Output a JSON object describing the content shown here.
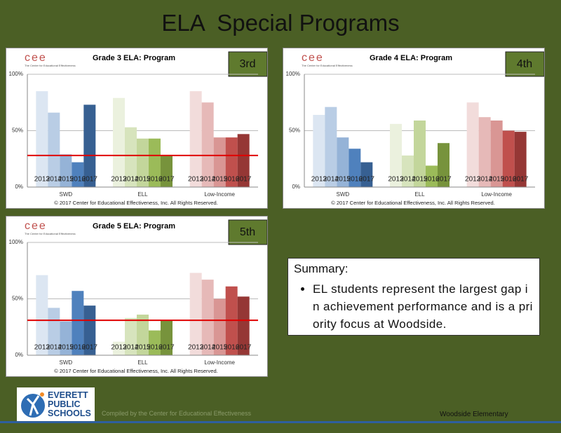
{
  "title": "ELA  Special Programs",
  "logo": {
    "mark": "cee",
    "caption": "The Center for Educational Effectiveness"
  },
  "summary": {
    "heading": "Summary:",
    "bullets": [
      "EL students represent the largest gap in achievement performance and is a priority focus at Woodside."
    ]
  },
  "footer": {
    "district": "EVERETT PUBLIC SCHOOLS",
    "credit": "Compiled by the Center for Educational Effectiveness",
    "school": "Woodside Elementary"
  },
  "chart_data": [
    {
      "type": "bar",
      "title": "Grade 3 ELA: Program",
      "grade": "3rd",
      "categories": [
        "SWD",
        "ELL",
        "Low-Income"
      ],
      "bar_labels": [
        "2013",
        "2014",
        "2015",
        "2016",
        "2017"
      ],
      "values": [
        [
          85,
          66,
          29,
          22,
          73
        ],
        [
          79,
          53,
          43,
          43,
          28
        ],
        [
          85,
          75,
          44,
          44,
          47
        ]
      ],
      "colors": [
        [
          "#dce6f2",
          "#b9cde5",
          "#95b3d7",
          "#4f81bd",
          "#376092"
        ],
        [
          "#ebf1de",
          "#d7e4bd",
          "#c3d69b",
          "#9bbb59",
          "#77933c"
        ],
        [
          "#f2dcdb",
          "#e6b9b8",
          "#d99694",
          "#c0504d",
          "#953735"
        ]
      ],
      "target": 28,
      "target_color": "#e00000",
      "ylim": [
        0,
        100
      ],
      "yticks": [
        {
          "value": 0,
          "label": "0%"
        },
        {
          "value": 50,
          "label": "50%"
        },
        {
          "value": 100,
          "label": "100%"
        }
      ],
      "grid": true,
      "source": "© 2017 Center for Educational Effectiveness, Inc. All Rights Reserved."
    },
    {
      "type": "bar",
      "title": "Grade 4 ELA: Program",
      "grade": "4th",
      "categories": [
        "SWD",
        "ELL",
        "Low-Income"
      ],
      "bar_labels": [
        "2013",
        "2014",
        "2015",
        "2016",
        "2017"
      ],
      "values": [
        [
          64,
          71,
          44,
          34,
          22
        ],
        [
          56,
          28,
          59,
          19,
          39
        ],
        [
          75,
          62,
          59,
          50,
          49
        ]
      ],
      "colors": [
        [
          "#dce6f2",
          "#b9cde5",
          "#95b3d7",
          "#4f81bd",
          "#376092"
        ],
        [
          "#ebf1de",
          "#d7e4bd",
          "#c3d69b",
          "#9bbb59",
          "#77933c"
        ],
        [
          "#f2dcdb",
          "#e6b9b8",
          "#d99694",
          "#c0504d",
          "#953735"
        ]
      ],
      "ylim": [
        0,
        100
      ],
      "yticks": [
        {
          "value": 0,
          "label": "0%"
        },
        {
          "value": 50,
          "label": "50%"
        },
        {
          "value": 100,
          "label": "100%"
        }
      ],
      "grid": true,
      "source": "© 2017 Center for Educational Effectiveness, Inc. All Rights Reserved."
    },
    {
      "type": "bar",
      "title": "Grade 5 ELA: Program",
      "grade": "5th",
      "categories": [
        "SWD",
        "ELL",
        "Low-Income"
      ],
      "bar_labels": [
        "2013",
        "2014",
        "2015",
        "2016",
        "2017"
      ],
      "values": [
        [
          71,
          42,
          30,
          57,
          44
        ],
        [
          12,
          33,
          36,
          22,
          31
        ],
        [
          73,
          67,
          50,
          61,
          52
        ]
      ],
      "colors": [
        [
          "#dce6f2",
          "#b9cde5",
          "#95b3d7",
          "#4f81bd",
          "#376092"
        ],
        [
          "#ebf1de",
          "#d7e4bd",
          "#c3d69b",
          "#9bbb59",
          "#77933c"
        ],
        [
          "#f2dcdb",
          "#e6b9b8",
          "#d99694",
          "#c0504d",
          "#953735"
        ]
      ],
      "target": 31,
      "target_color": "#e00000",
      "ylim": [
        0,
        100
      ],
      "yticks": [
        {
          "value": 0,
          "label": "0%"
        },
        {
          "value": 50,
          "label": "50%"
        },
        {
          "value": 100,
          "label": "100%"
        }
      ],
      "grid": true,
      "source": "© 2017 Center for Educational Effectiveness, Inc. All Rights Reserved."
    }
  ]
}
